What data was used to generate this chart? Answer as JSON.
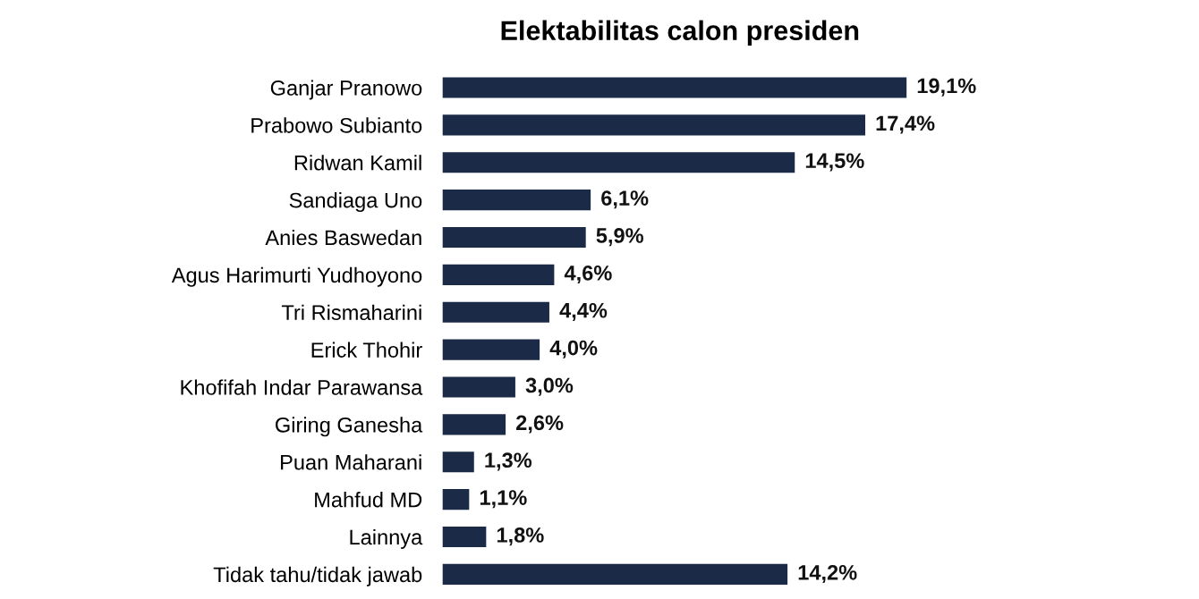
{
  "chart_data": {
    "type": "bar",
    "orientation": "horizontal",
    "title": "Elektabilitas calon presiden",
    "categories": [
      "Ganjar Pranowo",
      "Prabowo Subianto",
      "Ridwan Kamil",
      "Sandiaga Uno",
      "Anies Baswedan",
      "Agus Harimurti Yudhoyono",
      "Tri Rismaharini",
      "Erick Thohir",
      "Khofifah Indar Parawansa",
      "Giring Ganesha",
      "Puan Maharani",
      "Mahfud MD",
      "Lainnya",
      "Tidak tahu/tidak jawab"
    ],
    "values": [
      19.1,
      17.4,
      14.5,
      6.1,
      5.9,
      4.6,
      4.4,
      4.0,
      3.0,
      2.6,
      1.3,
      1.1,
      1.8,
      14.2
    ],
    "value_labels": [
      "19,1%",
      "17,4%",
      "14,5%",
      "6,1%",
      "5,9%",
      "4,6%",
      "4,4%",
      "4,0%",
      "3,0%",
      "2,6%",
      "1,3%",
      "1,1%",
      "1,8%",
      "14,2%"
    ],
    "color": "#1b2a47",
    "grid": false,
    "legend": false
  }
}
